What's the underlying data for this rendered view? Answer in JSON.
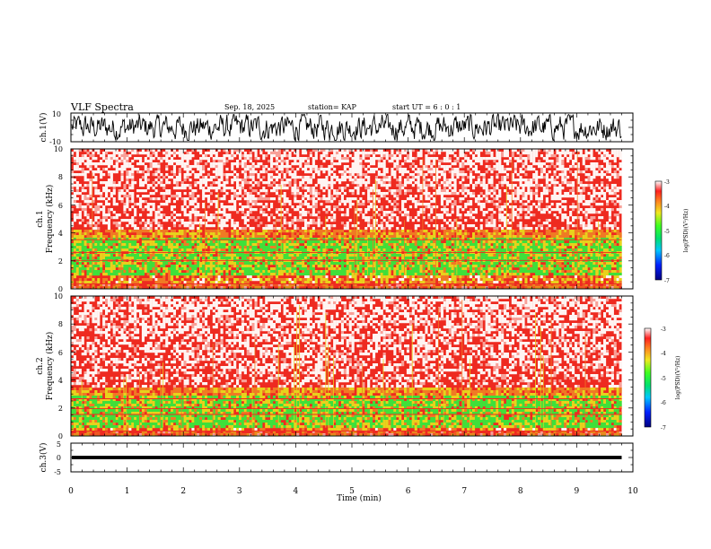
{
  "header": {
    "title": "VLF Spectra",
    "date": "Sep. 18, 2025",
    "station": "station= KAP",
    "start": "start  UT =  6 : 0  : 1"
  },
  "chart_data": [
    {
      "type": "line",
      "name": "ch1-waveform",
      "ylabel": "ch.1(V)",
      "ylim": [
        -10,
        10
      ],
      "yticks": [
        "10",
        "-10"
      ],
      "xlim": [
        0,
        10
      ],
      "note": "noisy waveform filling roughly -9 to +9 V"
    },
    {
      "type": "heatmap",
      "name": "ch1-spectrogram",
      "ylabel": "ch.1\nFrequency (kHz)",
      "ylabel_line1": "ch.1",
      "ylabel_line2": "Frequency (kHz)",
      "ylim": [
        0,
        10
      ],
      "yticks": [
        "0",
        "2",
        "4",
        "6",
        "8",
        "10"
      ],
      "xlim": [
        0,
        10
      ],
      "data_end_min": 9.8,
      "quiet_band_khz": [
        1.0,
        3.7
      ],
      "colorbar": {
        "label": "log(PSD)(V²/Hz)",
        "range": [
          -7,
          -3
        ],
        "ticks": [
          "-3",
          "-4",
          "-5",
          "-6",
          "-7"
        ]
      }
    },
    {
      "type": "heatmap",
      "name": "ch2-spectrogram",
      "ylabel": "ch.2\nFrequency (kHz)",
      "ylabel_line1": "ch.2",
      "ylabel_line2": "Frequency (kHz)",
      "ylim": [
        0,
        10
      ],
      "yticks": [
        "0",
        "2",
        "4",
        "6",
        "8",
        "10"
      ],
      "xlim": [
        0,
        10
      ],
      "data_end_min": 9.8,
      "quiet_band_khz": [
        0.6,
        2.8
      ],
      "colorbar": {
        "label": "log(PSD)(V²/Hz)",
        "range": [
          -7,
          -3
        ],
        "ticks": [
          "-3",
          "-4",
          "-5",
          "-6",
          "-7"
        ]
      }
    },
    {
      "type": "line",
      "name": "ch3-waveform",
      "ylabel": "ch.3(V)",
      "ylim": [
        -5,
        5
      ],
      "yticks": [
        "5",
        "0",
        "-5"
      ],
      "xlim": [
        0,
        10
      ],
      "band_v": [
        -0.6,
        0.6
      ],
      "note": "flat dense band around 0 V"
    }
  ],
  "xaxis": {
    "label": "Time (min)",
    "ticks": [
      "0",
      "1",
      "2",
      "3",
      "4",
      "5",
      "6",
      "7",
      "8",
      "9",
      "10"
    ]
  },
  "colors": {
    "background": "#ffffff",
    "red": "#ee2a20",
    "orange": "#f07a24",
    "yellow": "#e8d21c",
    "green": "#3fe03a",
    "white_pixel": "#fff4f2"
  }
}
